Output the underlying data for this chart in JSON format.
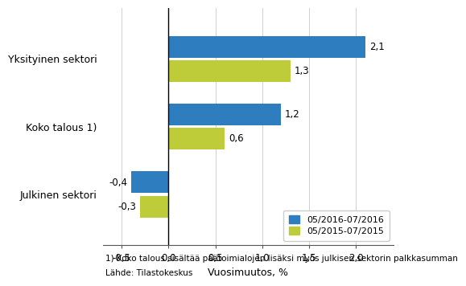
{
  "categories": [
    "Julkinen sektori",
    "Koko talous 1)",
    "Yksityinen sektori"
  ],
  "series_2016": [
    -0.4,
    1.2,
    2.1
  ],
  "series_2015": [
    -0.3,
    0.6,
    1.3
  ],
  "color_2016": "#2E7EBF",
  "color_2015": "#BFCC3A",
  "legend_2016": "05/2016-07/2016",
  "legend_2015": "05/2015-07/2015",
  "xlabel": "Vuosimuutos, %",
  "xlim": [
    -0.7,
    2.4
  ],
  "xticks": [
    -0.5,
    0.0,
    0.5,
    1.0,
    1.5,
    2.0
  ],
  "xtick_labels": [
    "-0,5",
    "0,0",
    "0,5",
    "1,0",
    "1,5",
    "2,0"
  ],
  "footnote1": "1) Koko talous sisältää päätoimialojen lisäksi myös julkisen sektorin palkkasumman",
  "footnote2": "Lähde: Tilastokeskus",
  "bar_height": 0.32,
  "bar_gap": 0.04,
  "label_fontsize": 8.5,
  "tick_fontsize": 8.5,
  "xlabel_fontsize": 9,
  "footnote_fontsize": 7.5,
  "category_fontsize": 9
}
